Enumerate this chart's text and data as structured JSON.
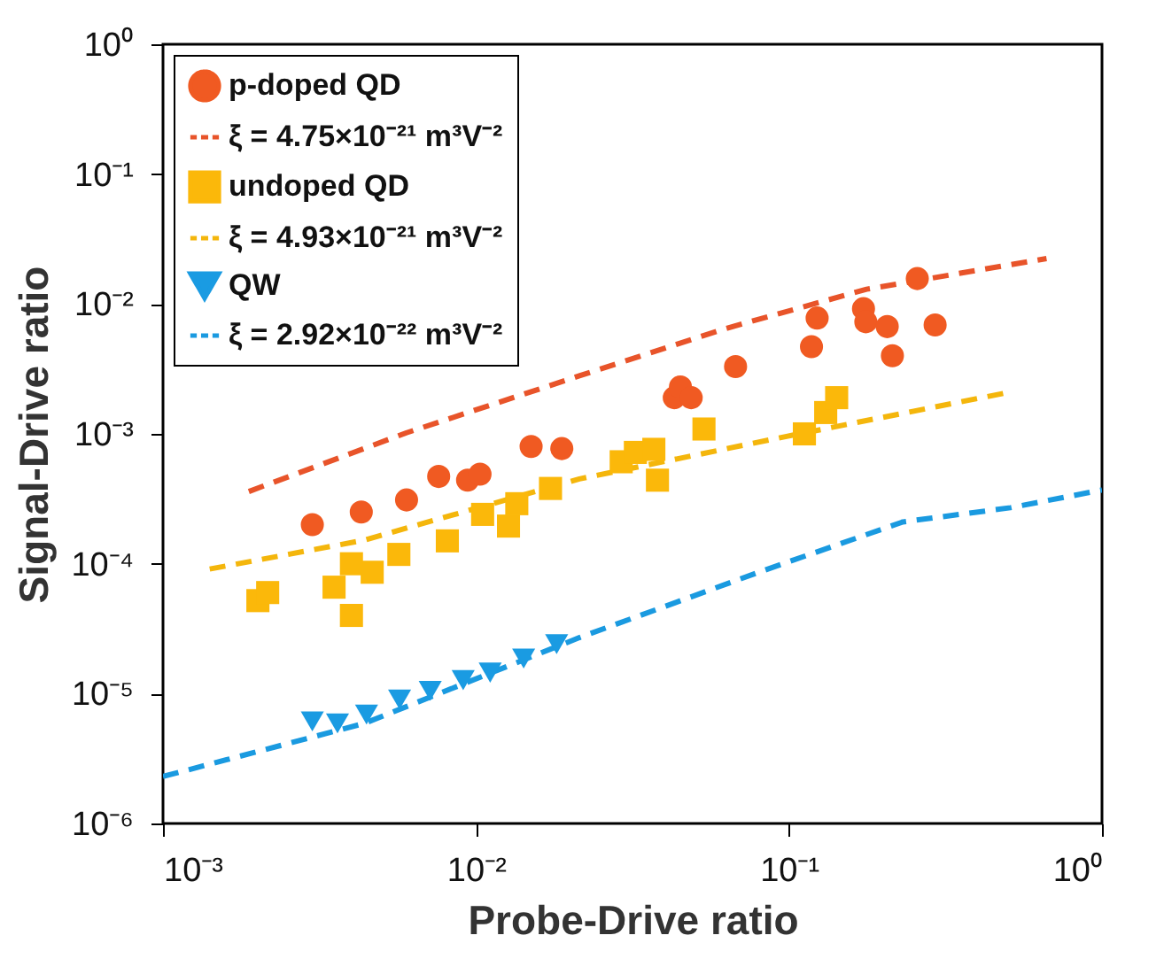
{
  "chart_data": {
    "type": "scatter",
    "xlabel": "Probe-Drive ratio",
    "ylabel": "Signal-Drive ratio",
    "log": "xy",
    "grid": false,
    "legend": "top left",
    "xlim": [
      0.001,
      1
    ],
    "ylim": [
      1e-06,
      1
    ],
    "xticks": [
      {
        "value": 0.001,
        "label": "10⁻³"
      },
      {
        "value": 0.01,
        "label": "10⁻²"
      },
      {
        "value": 0.1,
        "label": "10⁻¹"
      },
      {
        "value": 1,
        "label": "10⁰"
      }
    ],
    "yticks": [
      {
        "value": 1e-06,
        "label": "10⁻⁶"
      },
      {
        "value": 1e-05,
        "label": "10⁻⁵"
      },
      {
        "value": 0.0001,
        "label": "10⁻⁴"
      },
      {
        "value": 0.001,
        "label": "10⁻³"
      },
      {
        "value": 0.01,
        "label": "10⁻²"
      },
      {
        "value": 0.1,
        "label": "10⁻¹"
      },
      {
        "value": 1,
        "label": "10⁰"
      }
    ],
    "series": [
      {
        "name": "p-doped QD",
        "type": "scatter",
        "marker": "circle",
        "color": "#f05a22",
        "x": [
          0.003,
          0.0043,
          0.006,
          0.0076,
          0.0094,
          0.0103,
          0.015,
          0.0188,
          0.043,
          0.045,
          0.0487,
          0.0675,
          0.118,
          0.123,
          0.173,
          0.176,
          0.206,
          0.214,
          0.257,
          0.293
        ],
        "values": [
          0.0002,
          0.00025,
          0.00031,
          0.00047,
          0.00044,
          0.00049,
          0.0008,
          0.00077,
          0.0019,
          0.0023,
          0.0019,
          0.0033,
          0.0047,
          0.0078,
          0.0092,
          0.0073,
          0.0067,
          0.004,
          0.0157,
          0.0069
        ]
      },
      {
        "name": "ξ = 4.75×10⁻²¹ m³V⁻²",
        "type": "line",
        "line_style": "dashed",
        "marker": "none",
        "color": "#e8542a",
        "x": [
          0.00188,
          0.006,
          0.0214,
          0.0617,
          0.177,
          0.665
        ],
        "values": [
          0.00036,
          0.00102,
          0.0028,
          0.0064,
          0.013,
          0.0224
        ]
      },
      {
        "name": "undoped QD",
        "type": "scatter",
        "marker": "square",
        "color": "#fbb80a",
        "x": [
          0.00201,
          0.00216,
          0.00352,
          0.004,
          0.004,
          0.00466,
          0.00567,
          0.0081,
          0.0105,
          0.0127,
          0.0135,
          0.0173,
          0.0291,
          0.0323,
          0.037,
          0.038,
          0.0535,
          0.112,
          0.131,
          0.142
        ],
        "values": [
          5.2e-05,
          6e-05,
          6.6e-05,
          0.0001,
          4e-05,
          8.6e-05,
          0.000118,
          0.00015,
          0.00024,
          0.000195,
          0.00029,
          0.00038,
          0.00061,
          0.00072,
          0.00076,
          0.00044,
          0.00109,
          0.001,
          0.00146,
          0.0019
        ]
      },
      {
        "name": "ξ = 4.93×10⁻²¹ m³V⁻²",
        "type": "line",
        "line_style": "dashed",
        "marker": "none",
        "color": "#f4b60c",
        "x": [
          0.00141,
          0.0044,
          0.0214,
          0.099,
          0.484
        ],
        "values": [
          9.1e-05,
          0.000152,
          0.00045,
          0.00096,
          0.00205
        ]
      },
      {
        "name": "QW",
        "type": "scatter",
        "marker": "triangle-down",
        "color": "#1a9be2",
        "x": [
          0.003,
          0.00361,
          0.00447,
          0.0057,
          0.00714,
          0.0091,
          0.0111,
          0.0142,
          0.0181
        ],
        "values": [
          6.1e-06,
          5.9e-06,
          6.9e-06,
          9e-06,
          1.05e-05,
          1.27e-05,
          1.45e-05,
          1.86e-05,
          2.4e-05
        ]
      },
      {
        "name": "ξ = 2.92×10⁻²² m³V⁻²",
        "type": "line",
        "line_style": "dashed",
        "marker": "none",
        "color": "#1a9ae0",
        "x": [
          0.001,
          0.0044,
          0.0214,
          0.08,
          0.231,
          0.51,
          1
        ],
        "values": [
          2.3e-06,
          5.9e-06,
          2.7e-05,
          8.6e-05,
          0.00021,
          0.00027,
          0.00037
        ]
      }
    ]
  }
}
